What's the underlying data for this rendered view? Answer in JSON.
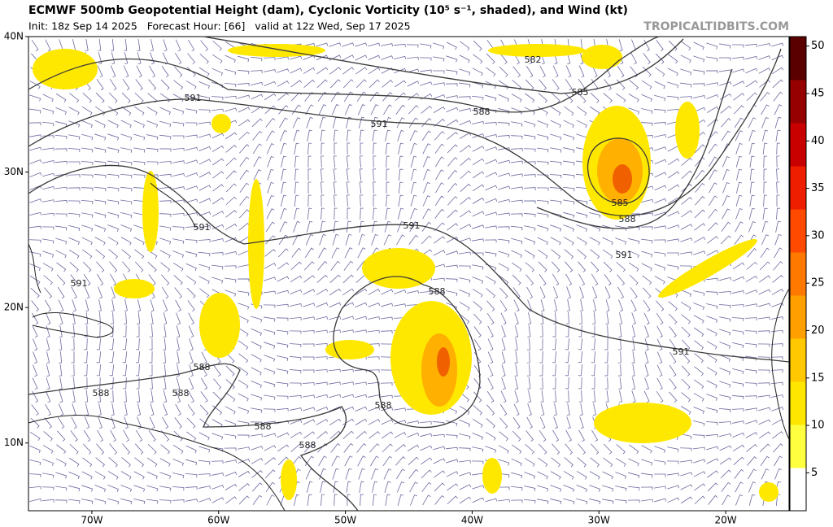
{
  "header": {
    "title": "ECMWF 500mb Geopotential Height (dam), Cyclonic Vorticity (10⁵ s⁻¹, shaded), and Wind (kt)",
    "subtitle": "Init: 18z Sep 14 2025   Forecast Hour: [66]   valid at 12z Wed, Sep 17 2025",
    "watermark": "TROPICALTIDBITS.COM"
  },
  "map": {
    "lonlim": [
      -75,
      -15
    ],
    "latlim": [
      5,
      40
    ],
    "lonticks": [
      {
        "value": -70,
        "label": "70W"
      },
      {
        "value": -60,
        "label": "60W"
      },
      {
        "value": -50,
        "label": "50W"
      },
      {
        "value": -40,
        "label": "40W"
      },
      {
        "value": -30,
        "label": "30W"
      },
      {
        "value": -20,
        "label": "20W"
      }
    ],
    "latticks": [
      {
        "value": 40,
        "label": "40N"
      },
      {
        "value": 30,
        "label": "30N"
      },
      {
        "value": 20,
        "label": "20N"
      },
      {
        "value": 10,
        "label": "10N"
      }
    ],
    "contour_labels": [
      "582",
      "585",
      "588",
      "591",
      "591",
      "585",
      "588",
      "591",
      "591",
      "591",
      "591",
      "588",
      "591",
      "588",
      "588",
      "588",
      "588",
      "588",
      "588"
    ]
  },
  "colorbar": {
    "range": [
      1,
      51
    ],
    "ticks": [
      5,
      10,
      15,
      20,
      25,
      30,
      35,
      40,
      45,
      50
    ],
    "colors": [
      "#ffffff",
      "#ffff40",
      "#ffe600",
      "#ffc800",
      "#ffa000",
      "#ff7800",
      "#ff4a00",
      "#f01e00",
      "#c80000",
      "#960000",
      "#5a0000"
    ]
  }
}
